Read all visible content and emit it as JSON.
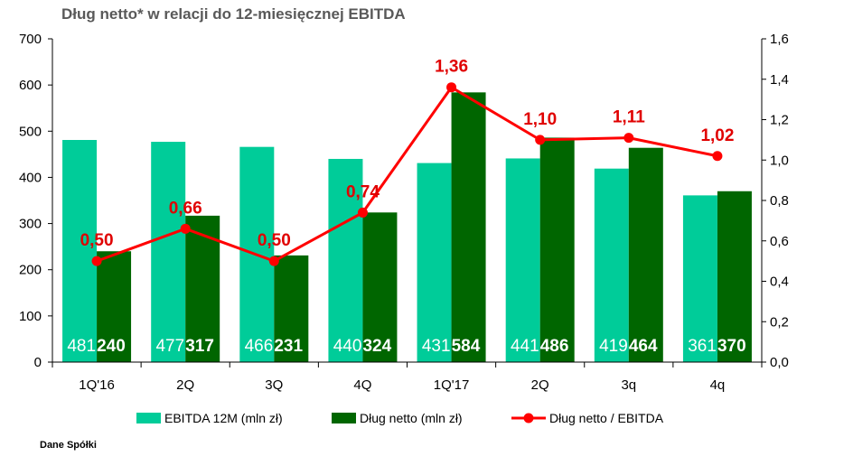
{
  "title": "Dług netto* w relacji do 12-miesięcznej EBITDA",
  "source": "Dane Spółki",
  "colors": {
    "ebitda": "#00cc99",
    "debt": "#006600",
    "ratio": "#ff0000",
    "ratio_label": "#e00000",
    "axis": "#000000"
  },
  "chart_data": {
    "type": "bar",
    "title": "Dług netto* w relacji do 12-miesięcznej EBITDA",
    "categories": [
      "1Q'16",
      "2Q",
      "3Q",
      "4Q",
      "1Q'17",
      "2Q",
      "3q",
      "4q"
    ],
    "series": [
      {
        "name": "EBITDA 12M (mln zł)",
        "type": "bar",
        "axis": "left",
        "values": [
          481,
          477,
          466,
          440,
          431,
          441,
          419,
          361
        ],
        "labels": [
          "481",
          "477",
          "466",
          "440",
          "431",
          "441",
          "419",
          "361"
        ]
      },
      {
        "name": "Dług netto (mln zł)",
        "type": "bar",
        "axis": "left",
        "values": [
          240,
          317,
          231,
          324,
          584,
          486,
          464,
          370
        ],
        "labels": [
          "240",
          "317",
          "231",
          "324",
          "584",
          "486",
          "464",
          "370"
        ]
      },
      {
        "name": "Dług netto / EBITDA",
        "type": "line",
        "axis": "right",
        "values": [
          0.5,
          0.66,
          0.5,
          0.74,
          1.36,
          1.1,
          1.11,
          1.02
        ],
        "labels": [
          "0,50",
          "0,66",
          "0,50",
          "0,74",
          "1,36",
          "1,10",
          "1,11",
          "1,02"
        ]
      }
    ],
    "y_left": {
      "min": 0,
      "max": 700,
      "ticks": [
        "0",
        "100",
        "200",
        "300",
        "400",
        "500",
        "600",
        "700"
      ]
    },
    "y_right": {
      "min": 0,
      "max": 1.6,
      "ticks": [
        "0,0",
        "0,2",
        "0,4",
        "0,6",
        "0,8",
        "1,0",
        "1,2",
        "1,4",
        "1,6"
      ]
    },
    "grid": false,
    "legend_position": "bottom"
  }
}
